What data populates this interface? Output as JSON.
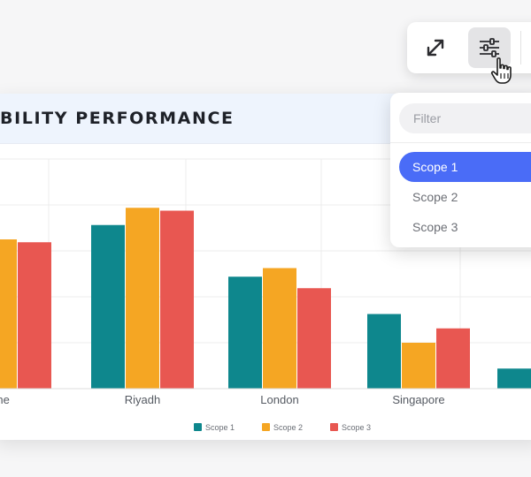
{
  "card": {
    "title": "BILITY PERFORMANCE"
  },
  "toolbar": {
    "buttons": [
      {
        "name": "expand",
        "icon": "expand-arrows-icon"
      },
      {
        "name": "filter",
        "icon": "sliders-icon",
        "active": true
      }
    ],
    "cursor_icon": "pointer-hand-icon"
  },
  "filter_dropdown": {
    "placeholder": "Filter",
    "options": [
      {
        "label": "Scope 1",
        "selected": true
      },
      {
        "label": "Scope 2",
        "selected": false
      },
      {
        "label": "Scope 3",
        "selected": false
      }
    ],
    "selected_color": "#4a6cf7"
  },
  "chart_data": {
    "type": "bar",
    "categories": [
      "une",
      "Riyadh",
      "London",
      "Singapore",
      "("
    ],
    "series": [
      {
        "name": "Scope 1",
        "color": "#0e878d",
        "values": [
          null,
          57,
          39,
          26,
          7
        ]
      },
      {
        "name": "Scope 2",
        "color": "#f5a623",
        "values": [
          52,
          63,
          42,
          16,
          null
        ]
      },
      {
        "name": "Scope 3",
        "color": "#e85751",
        "values": [
          51,
          62,
          35,
          21,
          null
        ]
      }
    ],
    "ylim": [
      0,
      80
    ],
    "grid": true,
    "legend_position": "bottom-center"
  }
}
